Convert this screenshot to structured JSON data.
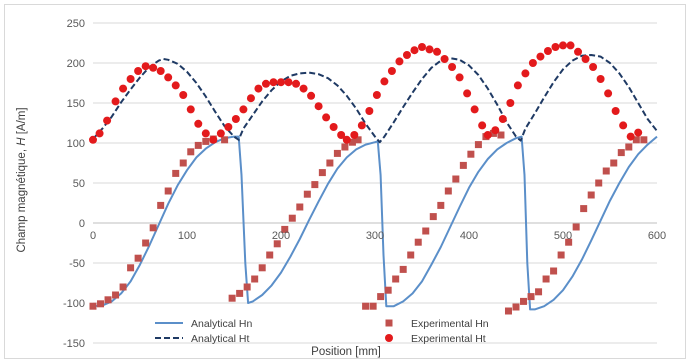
{
  "chart_data": {
    "type": "line",
    "xlabel": "Position [mm]",
    "ylabel_prefix": "Champ magnétique, ",
    "ylabel_var": "H",
    "ylabel_suffix": " [A/m]",
    "xlim": [
      0,
      600
    ],
    "ylim": [
      -150,
      250
    ],
    "x_ticks": [
      0,
      100,
      200,
      300,
      400,
      500,
      600
    ],
    "y_ticks": [
      -150,
      -100,
      -50,
      0,
      50,
      100,
      150,
      200,
      250
    ],
    "grid": "horizontal",
    "legend_position": "bottom-center",
    "colors": {
      "analytical_hn": "#5b8fc9",
      "analytical_ht": "#1f3a64",
      "experimental_hn": "#c0504d",
      "experimental_ht": "#e31a1c",
      "grid": "#d9d9d9",
      "zero_axis": "#bfbfbf"
    },
    "series": [
      {
        "name": "Analytical Hn",
        "style": "solid-line",
        "points": [
          [
            0,
            -104
          ],
          [
            10,
            -103
          ],
          [
            20,
            -98
          ],
          [
            30,
            -88
          ],
          [
            40,
            -73
          ],
          [
            50,
            -52
          ],
          [
            60,
            -28
          ],
          [
            70,
            -2
          ],
          [
            80,
            24
          ],
          [
            90,
            47
          ],
          [
            100,
            66
          ],
          [
            110,
            82
          ],
          [
            120,
            93
          ],
          [
            130,
            101
          ],
          [
            140,
            106
          ],
          [
            150,
            108
          ],
          [
            155,
            108
          ],
          [
            158,
            60
          ],
          [
            162,
            -50
          ],
          [
            165,
            -100
          ],
          [
            170,
            -98
          ],
          [
            180,
            -90
          ],
          [
            190,
            -78
          ],
          [
            200,
            -62
          ],
          [
            210,
            -42
          ],
          [
            220,
            -20
          ],
          [
            230,
            4
          ],
          [
            240,
            27
          ],
          [
            250,
            49
          ],
          [
            260,
            68
          ],
          [
            270,
            82
          ],
          [
            280,
            92
          ],
          [
            290,
            98
          ],
          [
            300,
            101
          ],
          [
            303,
            102
          ],
          [
            306,
            60
          ],
          [
            309,
            -40
          ],
          [
            312,
            -104
          ],
          [
            320,
            -104
          ],
          [
            330,
            -98
          ],
          [
            340,
            -88
          ],
          [
            350,
            -73
          ],
          [
            360,
            -52
          ],
          [
            370,
            -30
          ],
          [
            380,
            -5
          ],
          [
            390,
            20
          ],
          [
            400,
            44
          ],
          [
            410,
            64
          ],
          [
            420,
            80
          ],
          [
            430,
            92
          ],
          [
            440,
            100
          ],
          [
            450,
            106
          ],
          [
            456,
            108
          ],
          [
            459,
            60
          ],
          [
            462,
            -50
          ],
          [
            465,
            -108
          ],
          [
            470,
            -108
          ],
          [
            480,
            -104
          ],
          [
            490,
            -96
          ],
          [
            500,
            -84
          ],
          [
            510,
            -67
          ],
          [
            520,
            -46
          ],
          [
            530,
            -22
          ],
          [
            540,
            3
          ],
          [
            550,
            28
          ],
          [
            560,
            50
          ],
          [
            570,
            70
          ],
          [
            580,
            86
          ],
          [
            590,
            98
          ],
          [
            600,
            108
          ]
        ]
      },
      {
        "name": "Analytical Ht",
        "style": "dashed-line",
        "points": [
          [
            0,
            105
          ],
          [
            10,
            118
          ],
          [
            20,
            133
          ],
          [
            30,
            151
          ],
          [
            40,
            167
          ],
          [
            50,
            182
          ],
          [
            60,
            195
          ],
          [
            70,
            203
          ],
          [
            75,
            205
          ],
          [
            80,
            204
          ],
          [
            90,
            199
          ],
          [
            100,
            189
          ],
          [
            110,
            175
          ],
          [
            120,
            158
          ],
          [
            130,
            139
          ],
          [
            140,
            121
          ],
          [
            150,
            108
          ],
          [
            155,
            104
          ],
          [
            160,
            118
          ],
          [
            170,
            135
          ],
          [
            180,
            152
          ],
          [
            190,
            166
          ],
          [
            200,
            177
          ],
          [
            210,
            184
          ],
          [
            220,
            187
          ],
          [
            230,
            188
          ],
          [
            240,
            186
          ],
          [
            250,
            181
          ],
          [
            260,
            172
          ],
          [
            270,
            159
          ],
          [
            280,
            143
          ],
          [
            290,
            124
          ],
          [
            300,
            108
          ],
          [
            305,
            101
          ],
          [
            310,
            108
          ],
          [
            320,
            126
          ],
          [
            330,
            145
          ],
          [
            340,
            163
          ],
          [
            350,
            180
          ],
          [
            360,
            194
          ],
          [
            370,
            203
          ],
          [
            380,
            206
          ],
          [
            390,
            204
          ],
          [
            400,
            197
          ],
          [
            410,
            185
          ],
          [
            420,
            168
          ],
          [
            430,
            148
          ],
          [
            440,
            126
          ],
          [
            450,
            108
          ],
          [
            455,
            103
          ],
          [
            460,
            118
          ],
          [
            470,
            137
          ],
          [
            480,
            157
          ],
          [
            490,
            176
          ],
          [
            500,
            192
          ],
          [
            510,
            203
          ],
          [
            520,
            209
          ],
          [
            530,
            210
          ],
          [
            540,
            208
          ],
          [
            550,
            200
          ],
          [
            560,
            187
          ],
          [
            570,
            170
          ],
          [
            580,
            150
          ],
          [
            590,
            130
          ],
          [
            600,
            115
          ]
        ]
      },
      {
        "name": "Experimental Hn",
        "style": "square-marker",
        "points": [
          [
            0,
            -104
          ],
          [
            8,
            -101
          ],
          [
            16,
            -96
          ],
          [
            24,
            -90
          ],
          [
            32,
            -80
          ],
          [
            40,
            -56
          ],
          [
            48,
            -44
          ],
          [
            56,
            -25
          ],
          [
            64,
            -6
          ],
          [
            72,
            22
          ],
          [
            80,
            40
          ],
          [
            88,
            62
          ],
          [
            96,
            75
          ],
          [
            104,
            89
          ],
          [
            112,
            97
          ],
          [
            120,
            102
          ],
          [
            128,
            105
          ],
          [
            140,
            104
          ],
          [
            148,
            -94
          ],
          [
            156,
            -88
          ],
          [
            164,
            -80
          ],
          [
            172,
            -70
          ],
          [
            180,
            -56
          ],
          [
            188,
            -40
          ],
          [
            196,
            -26
          ],
          [
            204,
            -8
          ],
          [
            212,
            6
          ],
          [
            220,
            20
          ],
          [
            228,
            36
          ],
          [
            236,
            48
          ],
          [
            244,
            63
          ],
          [
            252,
            75
          ],
          [
            260,
            87
          ],
          [
            268,
            95
          ],
          [
            276,
            101
          ],
          [
            282,
            104
          ],
          [
            290,
            -104
          ],
          [
            298,
            -104
          ],
          [
            306,
            -92
          ],
          [
            314,
            -84
          ],
          [
            322,
            -70
          ],
          [
            330,
            -58
          ],
          [
            338,
            -40
          ],
          [
            346,
            -24
          ],
          [
            354,
            -10
          ],
          [
            362,
            8
          ],
          [
            370,
            22
          ],
          [
            378,
            40
          ],
          [
            386,
            55
          ],
          [
            394,
            72
          ],
          [
            402,
            86
          ],
          [
            410,
            98
          ],
          [
            418,
            108
          ],
          [
            426,
            112
          ],
          [
            434,
            110
          ],
          [
            442,
            -110
          ],
          [
            450,
            -105
          ],
          [
            458,
            -98
          ],
          [
            466,
            -92
          ],
          [
            474,
            -86
          ],
          [
            482,
            -70
          ],
          [
            490,
            -60
          ],
          [
            498,
            -40
          ],
          [
            506,
            -24
          ],
          [
            514,
            -5
          ],
          [
            522,
            18
          ],
          [
            530,
            35
          ],
          [
            538,
            50
          ],
          [
            546,
            65
          ],
          [
            554,
            75
          ],
          [
            562,
            88
          ],
          [
            570,
            95
          ],
          [
            578,
            104
          ],
          [
            586,
            104
          ]
        ]
      },
      {
        "name": "Experimental Ht",
        "style": "circle-marker",
        "points": [
          [
            0,
            104
          ],
          [
            7,
            112
          ],
          [
            15,
            128
          ],
          [
            24,
            152
          ],
          [
            32,
            168
          ],
          [
            40,
            180
          ],
          [
            48,
            190
          ],
          [
            56,
            196
          ],
          [
            64,
            194
          ],
          [
            72,
            190
          ],
          [
            80,
            182
          ],
          [
            88,
            172
          ],
          [
            96,
            160
          ],
          [
            104,
            142
          ],
          [
            112,
            124
          ],
          [
            120,
            112
          ],
          [
            128,
            104
          ],
          [
            136,
            112
          ],
          [
            144,
            120
          ],
          [
            152,
            130
          ],
          [
            160,
            142
          ],
          [
            168,
            156
          ],
          [
            176,
            168
          ],
          [
            184,
            174
          ],
          [
            192,
            176
          ],
          [
            200,
            176
          ],
          [
            208,
            176
          ],
          [
            216,
            174
          ],
          [
            224,
            168
          ],
          [
            232,
            159
          ],
          [
            240,
            146
          ],
          [
            248,
            132
          ],
          [
            256,
            120
          ],
          [
            264,
            110
          ],
          [
            270,
            104
          ],
          [
            278,
            110
          ],
          [
            286,
            122
          ],
          [
            294,
            140
          ],
          [
            302,
            160
          ],
          [
            310,
            177
          ],
          [
            318,
            190
          ],
          [
            326,
            202
          ],
          [
            334,
            210
          ],
          [
            342,
            216
          ],
          [
            350,
            220
          ],
          [
            358,
            217
          ],
          [
            366,
            214
          ],
          [
            374,
            205
          ],
          [
            382,
            195
          ],
          [
            390,
            182
          ],
          [
            398,
            162
          ],
          [
            406,
            142
          ],
          [
            414,
            122
          ],
          [
            420,
            110
          ],
          [
            428,
            116
          ],
          [
            436,
            130
          ],
          [
            444,
            150
          ],
          [
            452,
            172
          ],
          [
            460,
            187
          ],
          [
            468,
            200
          ],
          [
            476,
            208
          ],
          [
            484,
            215
          ],
          [
            492,
            220
          ],
          [
            500,
            222
          ],
          [
            508,
            222
          ],
          [
            516,
            214
          ],
          [
            524,
            205
          ],
          [
            532,
            195
          ],
          [
            540,
            180
          ],
          [
            548,
            162
          ],
          [
            556,
            140
          ],
          [
            564,
            122
          ],
          [
            572,
            108
          ],
          [
            580,
            113
          ]
        ]
      }
    ]
  }
}
